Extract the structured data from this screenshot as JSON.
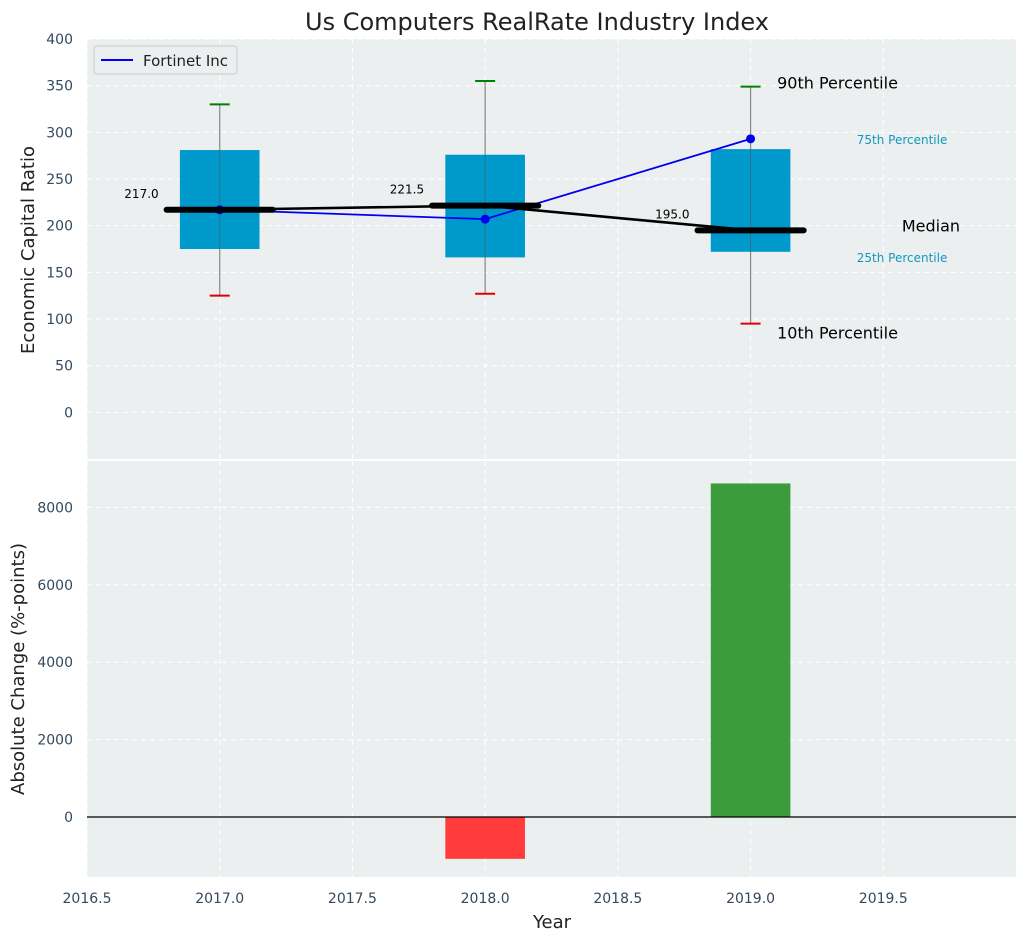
{
  "title": "Us Computers RealRate Industry Index",
  "x_axis_label": "Year",
  "colors": {
    "panel_bg": "#eceff0",
    "grid": "#ffffff",
    "box": "#0099cc",
    "company_line": "#0000ee",
    "median_line": "#000000",
    "p90_cap": "#008000",
    "p10_cap": "#dd0000",
    "bar_positive": "#3c9c3c",
    "bar_negative": "#ff3b3b",
    "tick_text": "#34495e",
    "percentile_text": "#1199bb"
  },
  "chart_data": [
    {
      "type": "box",
      "ylabel": "Economic Capital Ratio",
      "xlim": [
        2016.5,
        2020.0
      ],
      "ylim": [
        -50,
        400
      ],
      "x_ticks": [
        2016.5,
        2017.0,
        2017.5,
        2018.0,
        2018.5,
        2019.0,
        2019.5
      ],
      "x_tick_labels": [
        "2016.5",
        "2017.0",
        "2017.5",
        "2018.0",
        "2018.5",
        "2019.0",
        "2019.5"
      ],
      "y_ticks": [
        0,
        50,
        100,
        150,
        200,
        250,
        300,
        350,
        400
      ],
      "y_tick_labels": [
        "0",
        "50",
        "100",
        "150",
        "200",
        "250",
        "300",
        "350",
        "400"
      ],
      "grid": true,
      "legend": {
        "placement": "top-left",
        "entries": [
          "Fortinet Inc"
        ]
      },
      "years": [
        2017,
        2018,
        2019
      ],
      "p10": [
        125,
        127,
        95
      ],
      "p25": [
        175,
        166,
        172
      ],
      "median": [
        217.0,
        221.5,
        195.0
      ],
      "p75": [
        281,
        276,
        282
      ],
      "p90": [
        330,
        355,
        349
      ],
      "median_labels": [
        "217.0",
        "221.5",
        "195.0"
      ],
      "company": {
        "name": "Fortinet Inc",
        "values": [
          217,
          207,
          293
        ]
      },
      "annotations": {
        "p90": "90th Percentile",
        "p75": "75th Percentile",
        "median": "Median",
        "p25": "25th Percentile",
        "p10": "10th Percentile"
      }
    },
    {
      "type": "bar",
      "ylabel": "Absolute Change (%-points)",
      "xlabel": "Year",
      "xlim": [
        2016.5,
        2020.0
      ],
      "ylim": [
        -1550,
        9200
      ],
      "y_ticks": [
        0,
        2000,
        4000,
        6000,
        8000
      ],
      "y_tick_labels": [
        "0",
        "2000",
        "4000",
        "6000",
        "8000"
      ],
      "grid": true,
      "years": [
        2018,
        2019
      ],
      "values": [
        -1080,
        8620
      ]
    }
  ]
}
